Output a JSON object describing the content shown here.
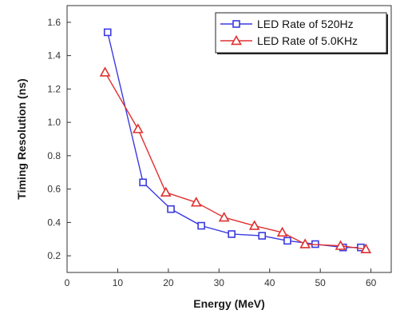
{
  "chart_data": {
    "type": "line",
    "title": "",
    "xlabel": "Energy (MeV)",
    "ylabel": "Timing Resolution (ns)",
    "xlim": [
      0,
      64
    ],
    "ylim": [
      0.1,
      1.7
    ],
    "xticks": [
      0,
      10,
      20,
      30,
      40,
      50,
      60
    ],
    "yticks": [
      0.2,
      0.4,
      0.6,
      0.8,
      1.0,
      1.2,
      1.4,
      1.6
    ],
    "grid": false,
    "legend_position": "top-right",
    "series": [
      {
        "name": "LED Rate of 520Hz",
        "color": "#3a3ae0",
        "marker": "square",
        "x": [
          8,
          15,
          20.5,
          26.5,
          32.5,
          38.5,
          43.5,
          49,
          54.5,
          58
        ],
        "y": [
          1.54,
          0.64,
          0.48,
          0.38,
          0.33,
          0.32,
          0.29,
          0.27,
          0.25,
          0.25
        ]
      },
      {
        "name": "LED Rate of 5.0KHz",
        "color": "#e03030",
        "marker": "triangle",
        "x": [
          7.5,
          14,
          19.5,
          25.5,
          31,
          37,
          42.5,
          47,
          54,
          59
        ],
        "y": [
          1.3,
          0.96,
          0.58,
          0.52,
          0.43,
          0.38,
          0.34,
          0.27,
          0.26,
          0.24
        ]
      }
    ]
  }
}
